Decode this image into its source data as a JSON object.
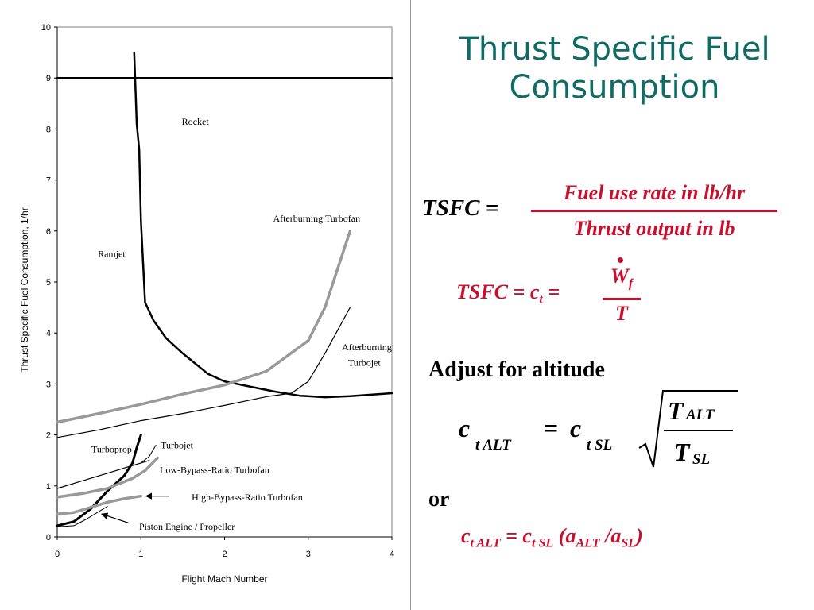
{
  "slide": {
    "title_line1": "Thrust Specific Fuel",
    "title_line2": "Consumption",
    "accent_color": "#0f6b63",
    "equation_color": "#c8102e"
  },
  "equations": {
    "eq1_lhs": "TSFC =",
    "eq1_numerator": "Fuel use rate in lb/hr",
    "eq1_denominator": "Thrust output in lb",
    "eq2_lhs": "TSFC = c",
    "eq2_lhs_sub": "t",
    "eq2_lhs_eq": " =",
    "eq2_num": "W",
    "eq2_num_sub": "f",
    "eq2_den": "T",
    "adjust_heading": "Adjust for altitude",
    "eq3_c1": "c",
    "eq3_sub1": "t ALT",
    "eq3_eq": "=",
    "eq3_c2": "c",
    "eq3_sub2": "t SL",
    "eq3_top": "T",
    "eq3_top_sub": "ALT",
    "eq3_bot": "T",
    "eq3_bot_sub": "SL",
    "or_text": "or",
    "eq4_c1": "c",
    "eq4_sub1": "t ALT",
    "eq4_eq": " = ",
    "eq4_c2": "c",
    "eq4_sub2": "t SL",
    "eq4_open": " (a",
    "eq4_sub3": "ALT",
    "eq4_slash": " /a",
    "eq4_sub4": "SL",
    "eq4_close": ")"
  },
  "chart_data": {
    "type": "line",
    "title": "",
    "xlabel": "Flight Mach Number",
    "ylabel": "Thrust Specific Fuel Consumption, 1/hr",
    "xlim": [
      0,
      4
    ],
    "ylim": [
      0,
      10
    ],
    "xticks": [
      "0",
      "1",
      "2",
      "3",
      "4"
    ],
    "yticks": [
      "0",
      "1",
      "2",
      "3",
      "4",
      "5",
      "6",
      "7",
      "8",
      "9",
      "10"
    ],
    "grid": false,
    "series": [
      {
        "name": "Rocket",
        "color": "#000000",
        "width": 2.5,
        "x": [
          0,
          4
        ],
        "y": [
          9,
          9
        ]
      },
      {
        "name": "Ramjet",
        "color": "#000000",
        "width": 2.5,
        "x": [
          0.92,
          0.95,
          0.98,
          1.0,
          1.05,
          1.15,
          1.3,
          1.5,
          1.8,
          2.0,
          2.3,
          2.6,
          2.9,
          3.2,
          3.5,
          4.0
        ],
        "y": [
          9.5,
          8.1,
          7.6,
          6.2,
          4.6,
          4.25,
          3.9,
          3.6,
          3.2,
          3.05,
          2.95,
          2.85,
          2.77,
          2.74,
          2.76,
          2.82
        ]
      },
      {
        "name": "Afterburning Turbofan",
        "color": "#999999",
        "width": 3.5,
        "x": [
          0,
          0.5,
          1.0,
          1.5,
          2.0,
          2.5,
          3.0,
          3.2,
          3.4,
          3.5
        ],
        "y": [
          2.25,
          2.42,
          2.6,
          2.8,
          2.98,
          3.25,
          3.85,
          4.5,
          5.5,
          6.0
        ]
      },
      {
        "name": "Afterburning Turbojet",
        "color": "#000000",
        "width": 1.2,
        "x": [
          0,
          0.5,
          1.0,
          1.5,
          2.0,
          2.5,
          2.8,
          3.0,
          3.2,
          3.5
        ],
        "y": [
          1.95,
          2.1,
          2.28,
          2.42,
          2.58,
          2.75,
          2.82,
          3.05,
          3.6,
          4.5
        ]
      },
      {
        "name": "Turboprop",
        "color": "#000000",
        "width": 1.2,
        "x": [
          0,
          0.2,
          0.4,
          0.6,
          0.8,
          1.0,
          1.1
        ],
        "y": [
          0.95,
          1.05,
          1.15,
          1.25,
          1.35,
          1.45,
          1.5
        ]
      },
      {
        "name": "Turbojet",
        "color": "#000000",
        "width": 3.0,
        "x": [
          0,
          0.2,
          0.4,
          0.6,
          0.8,
          0.9,
          0.95,
          1.0
        ],
        "y": [
          0.22,
          0.3,
          0.55,
          0.9,
          1.2,
          1.45,
          1.75,
          2.0
        ]
      },
      {
        "name": "Turbojet",
        "color": "#000000",
        "width": 1.0,
        "x": [
          1.0,
          1.1,
          1.18
        ],
        "y": [
          1.45,
          1.58,
          1.8
        ]
      },
      {
        "name": "Low-Bypass-Ratio Turbofan",
        "color": "#999999",
        "width": 3.5,
        "x": [
          0,
          0.3,
          0.6,
          0.9,
          1.05,
          1.2
        ],
        "y": [
          0.78,
          0.85,
          0.95,
          1.15,
          1.3,
          1.55
        ]
      },
      {
        "name": "High-Bypass-Ratio Turbofan",
        "color": "#999999",
        "width": 3.5,
        "x": [
          0,
          0.2,
          0.4,
          0.6,
          0.8,
          1.0
        ],
        "y": [
          0.45,
          0.48,
          0.58,
          0.68,
          0.75,
          0.8
        ]
      },
      {
        "name": "Piston Engine / Propeller",
        "color": "#000000",
        "width": 1.0,
        "x": [
          0,
          0.2,
          0.35,
          0.5,
          0.6
        ],
        "y": [
          0.2,
          0.22,
          0.35,
          0.5,
          0.6
        ]
      }
    ],
    "labels": [
      {
        "text": "Rocket",
        "x": 1.65,
        "y": 8.15
      },
      {
        "text": "Afterburning Turbofan",
        "x": 3.1,
        "y": 6.25
      },
      {
        "text": "Ramjet",
        "x": 0.65,
        "y": 5.55
      },
      {
        "text": "Afterburning",
        "x": 3.7,
        "y": 3.72
      },
      {
        "text": "Turbojet",
        "x": 3.67,
        "y": 3.42
      },
      {
        "text": "Turboprop",
        "x": 0.65,
        "y": 1.72
      },
      {
        "text": "Turbojet",
        "x": 1.43,
        "y": 1.8
      },
      {
        "text": "Low-Bypass-Ratio Turbofan",
        "x": 1.88,
        "y": 1.32
      },
      {
        "text": "High-Bypass-Ratio Turbofan",
        "x": 2.27,
        "y": 0.78
      },
      {
        "text": "Piston Engine / Propeller",
        "x": 1.55,
        "y": 0.2
      }
    ],
    "arrows": [
      {
        "from": [
          1.33,
          0.8
        ],
        "to": [
          1.06,
          0.8
        ]
      },
      {
        "from": [
          0.86,
          0.27
        ],
        "to": [
          0.53,
          0.45
        ]
      }
    ]
  }
}
